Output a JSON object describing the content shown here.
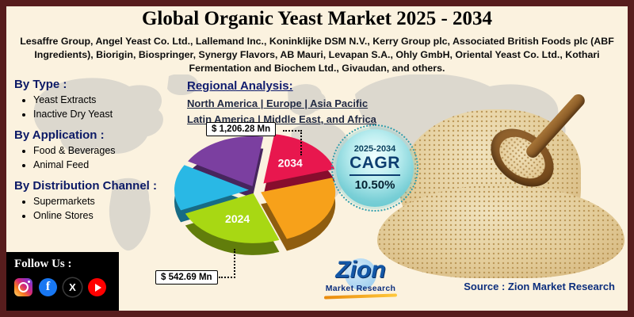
{
  "header": {
    "title": "Global Organic Yeast Market 2025 - 2034",
    "companies": "Lesaffre Group, Angel Yeast Co. Ltd., Lallemand Inc., Koninklijke DSM N.V., Kerry Group plc, Associated British Foods plc (ABF Ingredients), Biorigin, Biospringer, Synergy Flavors, AB Mauri, Levapan S.A., Ohly GmbH, Oriental Yeast Co. Ltd., Kothari Fermentation and Biochem Ltd., Givaudan, and others."
  },
  "segments": [
    {
      "heading": "By Type :",
      "items": [
        "Yeast Extracts",
        "Inactive Dry Yeast"
      ]
    },
    {
      "heading": "By Application :",
      "items": [
        "Food & Beverages",
        "Animal Feed"
      ]
    },
    {
      "heading": "By Distribution Channel :",
      "items": [
        "Supermarkets",
        "Online Stores"
      ]
    }
  ],
  "regional": {
    "heading": "Regional Analysis:",
    "lines": [
      "North America | Europe | Asia Pacific",
      "Latin America | Middle East, and Africa"
    ]
  },
  "chart_data": {
    "type": "pie",
    "style": "3d-exploded",
    "start_angle": 300,
    "slices": [
      {
        "label": "",
        "value": 19,
        "color": "#7b3fa0",
        "explode": 8
      },
      {
        "label": "2034",
        "value": 18,
        "color": "#e8174e",
        "explode": 16,
        "callout": "$ 1,206.28 Mn"
      },
      {
        "label": "",
        "value": 24,
        "color": "#f7a11a",
        "explode": 8
      },
      {
        "label": "2024",
        "value": 24,
        "color": "#a8d813",
        "explode": 6,
        "callout": "$ 542.69 Mn"
      },
      {
        "label": "",
        "value": 15,
        "color": "#29b8e5",
        "explode": 8
      }
    ],
    "annotations": [
      {
        "text": "$ 1,206.28 Mn",
        "target": "2034"
      },
      {
        "text": "$ 542.69 Mn",
        "target": "2024"
      }
    ]
  },
  "cagr": {
    "period": "2025-2034",
    "label": "CAGR",
    "value": "10.50%"
  },
  "follow": {
    "label": "Follow Us :",
    "icons": [
      "instagram",
      "facebook",
      "x-twitter",
      "youtube"
    ]
  },
  "logo": {
    "name": "Zion",
    "subtitle": "Market Research"
  },
  "source": {
    "text": "Source : Zion Market Research"
  },
  "colors": {
    "border_maroon": "#571d1d",
    "cream_background": "#fbf2df",
    "cagr_teal": "#79cfd6",
    "navy_heading": "#0c1a66"
  }
}
